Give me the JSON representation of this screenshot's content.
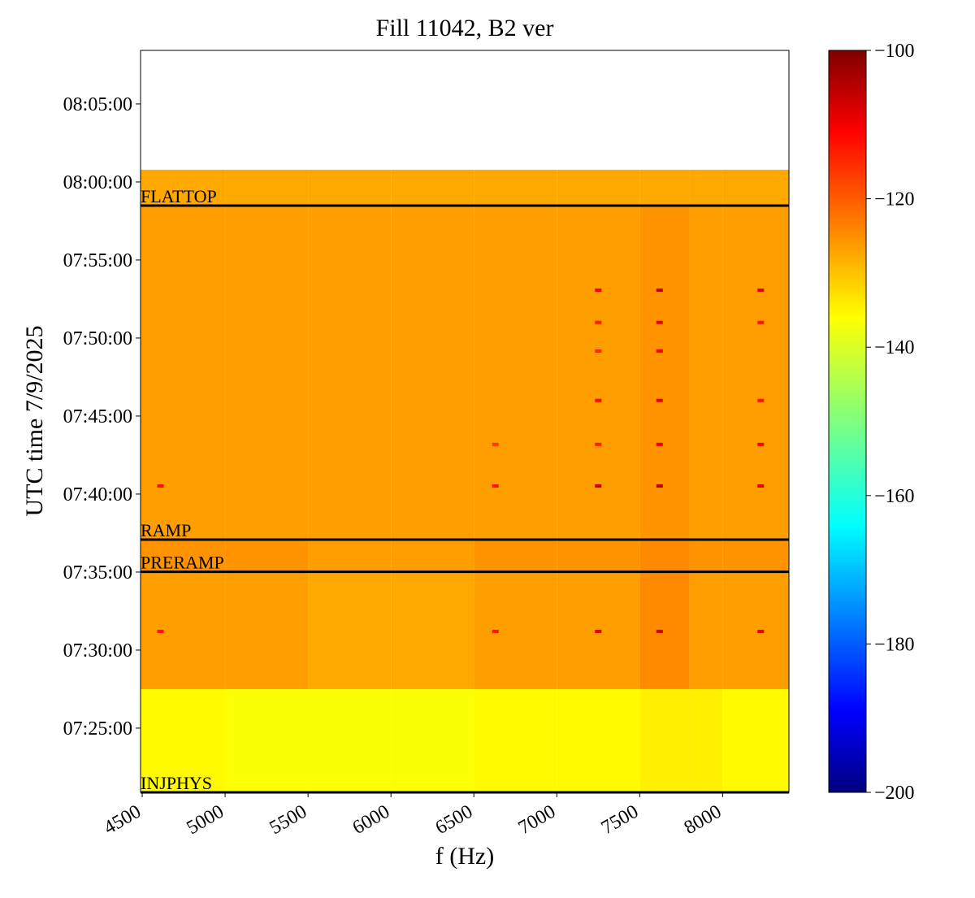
{
  "chart_data": {
    "type": "heatmap",
    "title": "Fill 11042, B2 ver",
    "xlabel": "f (Hz)",
    "ylabel": "UTC time 7/9/2025",
    "xlim": [
      4490,
      8400
    ],
    "xticks": [
      4500,
      5000,
      5500,
      6000,
      6500,
      7000,
      7500,
      8000
    ],
    "ylim": [
      26453,
      29306
    ],
    "yticks": [
      {
        "value": 26700,
        "label": "07:25:00"
      },
      {
        "value": 27000,
        "label": "07:30:00"
      },
      {
        "value": 27300,
        "label": "07:35:00"
      },
      {
        "value": 27600,
        "label": "07:40:00"
      },
      {
        "value": 27900,
        "label": "07:45:00"
      },
      {
        "value": 28200,
        "label": "07:50:00"
      },
      {
        "value": 28500,
        "label": "07:55:00"
      },
      {
        "value": 28800,
        "label": "08:00:00"
      },
      {
        "value": 29100,
        "label": "08:05:00"
      }
    ],
    "f_edges": [
      4490,
      5000,
      5500,
      6000,
      6500,
      7000,
      7500,
      7800,
      8000,
      8400
    ],
    "t_edges": [
      26453,
      26850,
      27301,
      27425,
      28709,
      28847
    ],
    "z": [
      [
        -137,
        -138,
        -138,
        -138,
        -137,
        -137,
        -136,
        -136,
        -137
      ],
      [
        -128,
        -128,
        -129,
        -129,
        -128,
        -128,
        -126,
        -128,
        -128
      ],
      [
        -127,
        -127,
        -128,
        -128,
        -127,
        -127,
        -126,
        -127,
        -127
      ],
      [
        -128,
        -128,
        -128,
        -128,
        -128,
        -128,
        -127,
        -128,
        -128
      ],
      [
        -129,
        -129,
        -129,
        -129,
        -129,
        -129,
        -129,
        -129,
        -129
      ]
    ],
    "peaks": [
      {
        "f": 7250,
        "t": 28384,
        "value": -112
      },
      {
        "f": 7620,
        "t": 28384,
        "value": -106
      },
      {
        "f": 8230,
        "t": 28384,
        "value": -110
      },
      {
        "f": 7250,
        "t": 28260,
        "value": -115
      },
      {
        "f": 7620,
        "t": 28260,
        "value": -110
      },
      {
        "f": 8230,
        "t": 28260,
        "value": -114
      },
      {
        "f": 7250,
        "t": 28150,
        "value": -116
      },
      {
        "f": 7620,
        "t": 28150,
        "value": -112
      },
      {
        "f": 7250,
        "t": 27960,
        "value": -113
      },
      {
        "f": 7620,
        "t": 27960,
        "value": -110
      },
      {
        "f": 8230,
        "t": 27960,
        "value": -114
      },
      {
        "f": 6630,
        "t": 27791,
        "value": -118
      },
      {
        "f": 7250,
        "t": 27791,
        "value": -115
      },
      {
        "f": 7620,
        "t": 27791,
        "value": -110
      },
      {
        "f": 8230,
        "t": 27791,
        "value": -112
      },
      {
        "f": 4610,
        "t": 27631,
        "value": -114
      },
      {
        "f": 6630,
        "t": 27631,
        "value": -114
      },
      {
        "f": 7250,
        "t": 27631,
        "value": -108
      },
      {
        "f": 7620,
        "t": 27631,
        "value": -106
      },
      {
        "f": 8230,
        "t": 27631,
        "value": -110
      },
      {
        "f": 4610,
        "t": 27072,
        "value": -114
      },
      {
        "f": 6630,
        "t": 27072,
        "value": -114
      },
      {
        "f": 7250,
        "t": 27072,
        "value": -110
      },
      {
        "f": 7620,
        "t": 27072,
        "value": -108
      },
      {
        "f": 8230,
        "t": 27072,
        "value": -110
      }
    ],
    "events": [
      {
        "label": "FLATTOP",
        "t": 28709
      },
      {
        "label": "RAMP",
        "t": 27425
      },
      {
        "label": "PRERAMP",
        "t": 27301
      },
      {
        "label": "INJPHYS",
        "t": 26453
      }
    ],
    "colormap": "jet",
    "clim": [
      -200,
      -100
    ],
    "cticks": [
      {
        "value": -100,
        "label": "−100"
      },
      {
        "value": -120,
        "label": "−120"
      },
      {
        "value": -140,
        "label": "−140"
      },
      {
        "value": -160,
        "label": "−160"
      },
      {
        "value": -180,
        "label": "−180"
      },
      {
        "value": -200,
        "label": "−200"
      }
    ]
  }
}
